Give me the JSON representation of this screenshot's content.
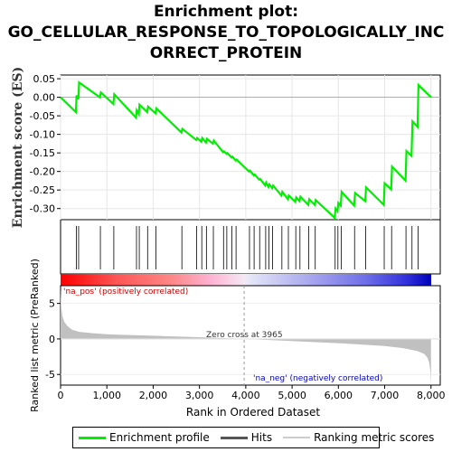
{
  "title_lines": [
    "Enrichment plot:",
    "GO_CELLULAR_RESPONSE_TO_TOPOLOGICALLY_INC",
    "ORRECT_PROTEIN"
  ],
  "colors": {
    "profile": "#00ee00",
    "hits": "#000000",
    "metric": "#c0c0c0",
    "pos_label": "#cc0000",
    "neg_label": "#0000cc",
    "zero_line": "#b0b0b0"
  },
  "legend": {
    "profile": "Enrichment profile",
    "hits": "Hits",
    "metric": "Ranking metric scores"
  },
  "annotations": {
    "pos_label": "'na_pos' (positively correlated)",
    "neg_label": "'na_neg' (negatively correlated)",
    "zero_cross": "Zero cross at 3965"
  },
  "chart_data": {
    "type": "line",
    "ylabel_es": "Enrichment score (ES)",
    "ylabel_metric": "Ranked list metric (PreRanked)",
    "xlabel": "Rank in Ordered Dataset",
    "xlim": [
      0,
      8200
    ],
    "ylim_es": [
      -0.33,
      0.06
    ],
    "ylim_metric": [
      -6.5,
      7.5
    ],
    "x_ticks": [
      0,
      1000,
      2000,
      3000,
      4000,
      5000,
      6000,
      7000,
      8000
    ],
    "x_tick_labels": [
      "0",
      "1,000",
      "2,000",
      "3,000",
      "4,000",
      "5,000",
      "6,000",
      "7,000",
      "8,000"
    ],
    "es_ticks": [
      0.05,
      0.0,
      -0.05,
      -0.1,
      -0.15,
      -0.2,
      -0.25,
      -0.3
    ],
    "es_tick_labels": [
      "0.05",
      "0.00",
      "-0.05",
      "-0.10",
      "-0.15",
      "-0.20",
      "-0.25",
      "-0.30"
    ],
    "metric_ticks": [
      5,
      0,
      -5
    ],
    "metric_tick_labels": [
      "5",
      "0",
      "-5"
    ],
    "zero_cross": 3965,
    "hits": [
      340,
      390,
      860,
      1150,
      1640,
      1700,
      1880,
      2060,
      2620,
      2940,
      3050,
      3150,
      3300,
      3520,
      3590,
      3700,
      3790,
      4080,
      4180,
      4300,
      4430,
      4500,
      4580,
      4780,
      4920,
      5080,
      5170,
      5360,
      5500,
      5930,
      5990,
      6060,
      6350,
      6590,
      6990,
      7150,
      7460,
      7590,
      7720
    ],
    "es_curve": [
      [
        0,
        0.0
      ],
      [
        330,
        -0.04
      ],
      [
        345,
        0.005
      ],
      [
        385,
        -0.005
      ],
      [
        400,
        0.04
      ],
      [
        850,
        0.0
      ],
      [
        870,
        0.013
      ],
      [
        1140,
        -0.018
      ],
      [
        1160,
        0.008
      ],
      [
        1630,
        -0.055
      ],
      [
        1645,
        -0.035
      ],
      [
        1690,
        -0.045
      ],
      [
        1705,
        -0.02
      ],
      [
        1870,
        -0.04
      ],
      [
        1890,
        -0.025
      ],
      [
        2050,
        -0.043
      ],
      [
        2070,
        -0.03
      ],
      [
        2610,
        -0.095
      ],
      [
        2630,
        -0.085
      ],
      [
        2930,
        -0.115
      ],
      [
        2950,
        -0.11
      ],
      [
        3040,
        -0.12
      ],
      [
        3060,
        -0.11
      ],
      [
        3140,
        -0.122
      ],
      [
        3160,
        -0.112
      ],
      [
        3290,
        -0.125
      ],
      [
        3310,
        -0.117
      ],
      [
        3510,
        -0.148
      ],
      [
        3530,
        -0.146
      ],
      [
        3580,
        -0.152
      ],
      [
        3600,
        -0.15
      ],
      [
        3690,
        -0.162
      ],
      [
        3710,
        -0.16
      ],
      [
        3780,
        -0.17
      ],
      [
        3800,
        -0.168
      ],
      [
        4070,
        -0.2
      ],
      [
        4090,
        -0.198
      ],
      [
        4170,
        -0.21
      ],
      [
        4190,
        -0.208
      ],
      [
        4290,
        -0.222
      ],
      [
        4310,
        -0.22
      ],
      [
        4420,
        -0.238
      ],
      [
        4440,
        -0.23
      ],
      [
        4490,
        -0.242
      ],
      [
        4510,
        -0.235
      ],
      [
        4570,
        -0.245
      ],
      [
        4590,
        -0.238
      ],
      [
        4770,
        -0.265
      ],
      [
        4790,
        -0.255
      ],
      [
        4910,
        -0.275
      ],
      [
        4930,
        -0.265
      ],
      [
        5070,
        -0.282
      ],
      [
        5090,
        -0.27
      ],
      [
        5160,
        -0.28
      ],
      [
        5180,
        -0.268
      ],
      [
        5350,
        -0.29
      ],
      [
        5370,
        -0.275
      ],
      [
        5490,
        -0.29
      ],
      [
        5510,
        -0.277
      ],
      [
        5920,
        -0.325
      ],
      [
        5940,
        -0.3
      ],
      [
        5980,
        -0.307
      ],
      [
        6000,
        -0.285
      ],
      [
        6050,
        -0.292
      ],
      [
        6070,
        -0.255
      ],
      [
        6340,
        -0.292
      ],
      [
        6360,
        -0.258
      ],
      [
        6580,
        -0.28
      ],
      [
        6600,
        -0.243
      ],
      [
        6980,
        -0.29
      ],
      [
        7000,
        -0.232
      ],
      [
        7140,
        -0.248
      ],
      [
        7160,
        -0.187
      ],
      [
        7450,
        -0.225
      ],
      [
        7470,
        -0.145
      ],
      [
        7580,
        -0.158
      ],
      [
        7600,
        -0.065
      ],
      [
        7710,
        -0.08
      ],
      [
        7730,
        0.033
      ],
      [
        8000,
        0.0
      ]
    ],
    "metric_curve": [
      [
        0,
        7.0
      ],
      [
        15,
        4.5
      ],
      [
        40,
        3.2
      ],
      [
        80,
        2.4
      ],
      [
        150,
        1.8
      ],
      [
        250,
        1.3
      ],
      [
        400,
        1.0
      ],
      [
        700,
        0.8
      ],
      [
        1000,
        0.65
      ],
      [
        1500,
        0.55
      ],
      [
        2000,
        0.45
      ],
      [
        2500,
        0.35
      ],
      [
        3000,
        0.25
      ],
      [
        3500,
        0.12
      ],
      [
        3965,
        0.0
      ],
      [
        4500,
        -0.15
      ],
      [
        5000,
        -0.3
      ],
      [
        5500,
        -0.45
      ],
      [
        6000,
        -0.6
      ],
      [
        6500,
        -0.78
      ],
      [
        7000,
        -1.0
      ],
      [
        7400,
        -1.3
      ],
      [
        7700,
        -1.7
      ],
      [
        7850,
        -2.1
      ],
      [
        7920,
        -2.6
      ],
      [
        7960,
        -3.3
      ],
      [
        7985,
        -4.5
      ],
      [
        8000,
        -6.5
      ]
    ]
  }
}
